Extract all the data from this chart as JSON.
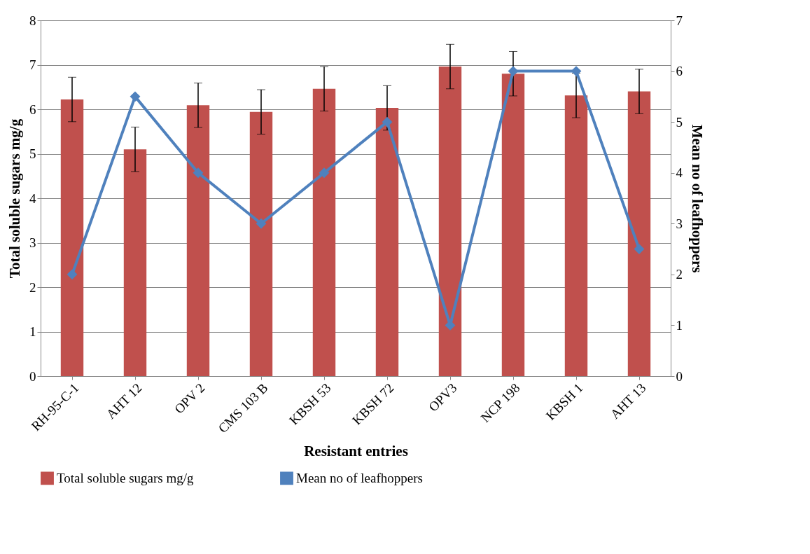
{
  "chart_data": {
    "type": "bar",
    "xlabel": "Resistant entries",
    "ylabel": "Total soluble sugars mg/g",
    "y2label": "Mean no of leafhoppers",
    "categories": [
      "RH-95-C-1",
      "AHT 12",
      "OPV 2",
      "CMS 103 B",
      "KBSH 53",
      "KBSH 72",
      "OPV3",
      "NCP 198",
      "KBSH 1",
      "AHT 13"
    ],
    "series": [
      {
        "name": "Total soluble sugars mg/g",
        "color": "#c0504d",
        "values": [
          6.22,
          5.1,
          6.09,
          5.94,
          6.46,
          6.03,
          6.96,
          6.8,
          6.31,
          6.4
        ],
        "errors": [
          0.5,
          0.5,
          0.5,
          0.5,
          0.5,
          0.5,
          0.5,
          0.5,
          0.5,
          0.5
        ]
      },
      {
        "name": "Mean no of leafhoppers",
        "type": "line",
        "axis": "y2",
        "color": "#4f81bd",
        "marker": "diamond",
        "values": [
          2,
          5.5,
          4,
          3,
          4,
          5,
          1,
          6,
          6,
          2.5
        ]
      }
    ],
    "ylim": [
      0,
      8
    ],
    "yticks": [
      0,
      1,
      2,
      3,
      4,
      5,
      6,
      7,
      8
    ],
    "y2lim": [
      0,
      7
    ],
    "y2ticks": [
      0,
      1,
      2,
      3,
      4,
      5,
      6,
      7
    ],
    "grid": "y",
    "legend": "bottom"
  }
}
